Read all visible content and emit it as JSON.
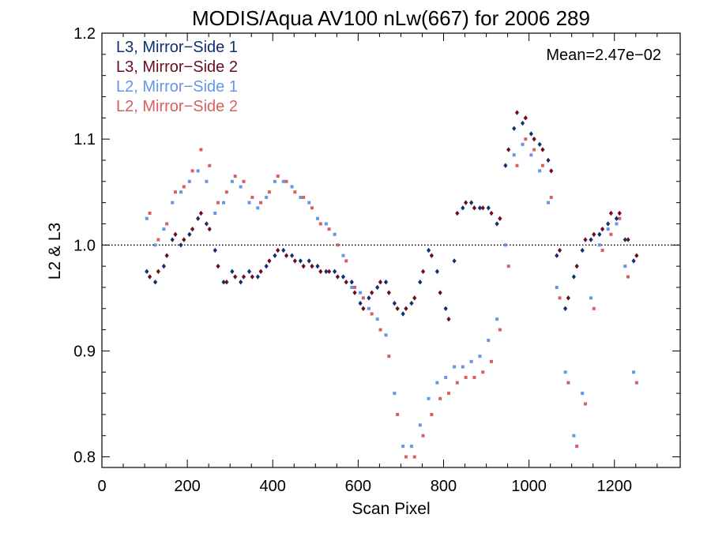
{
  "chart_data": {
    "type": "scatter",
    "title": "MODIS/Aqua AV100 nLw(667) for 2006 289",
    "xlabel": "Scan Pixel",
    "ylabel": "L2 & L3",
    "xlim": [
      0,
      1354
    ],
    "ylim": [
      0.79,
      1.2
    ],
    "xticks": [
      0,
      200,
      400,
      600,
      800,
      1000,
      1200
    ],
    "yticks": [
      0.8,
      0.9,
      1.0,
      1.1,
      1.2
    ],
    "xtick_labels": [
      "0",
      "200",
      "400",
      "600",
      "800",
      "1000",
      "1200"
    ],
    "ytick_labels": [
      "0.8",
      "0.9",
      "1.0",
      "1.1",
      "1.2"
    ],
    "reference_line": 1.0,
    "annotation": "Mean=2.47e−02",
    "legend_position": "top-left",
    "series": [
      {
        "name": "L3, Mirror−Side 1",
        "color": "#0f2f6e",
        "marker": "diamond",
        "x": [
          105,
          125,
          145,
          165,
          185,
          205,
          225,
          245,
          265,
          285,
          305,
          325,
          345,
          365,
          385,
          405,
          425,
          445,
          465,
          485,
          505,
          525,
          545,
          565,
          585,
          605,
          625,
          645,
          665,
          685,
          705,
          725,
          745,
          765,
          785,
          805,
          825,
          845,
          865,
          885,
          905,
          925,
          945,
          965,
          985,
          1005,
          1025,
          1045,
          1065,
          1085,
          1105,
          1125,
          1145,
          1165,
          1185,
          1205,
          1225,
          1245
        ],
        "y": [
          0.975,
          0.965,
          0.98,
          1.005,
          1.0,
          1.01,
          1.025,
          1.02,
          0.995,
          0.965,
          0.975,
          0.965,
          0.975,
          0.97,
          0.98,
          0.99,
          0.995,
          0.99,
          0.985,
          0.985,
          0.98,
          0.975,
          0.975,
          0.97,
          0.965,
          0.945,
          0.95,
          0.96,
          0.965,
          0.945,
          0.935,
          0.945,
          0.965,
          0.995,
          0.975,
          0.94,
          0.985,
          1.035,
          1.04,
          1.035,
          1.035,
          1.02,
          1.075,
          1.11,
          1.115,
          1.105,
          1.095,
          1.08,
          0.99,
          0.94,
          0.97,
          0.995,
          1.005,
          1.01,
          1.02,
          1.025,
          1.005,
          0.985
        ]
      },
      {
        "name": "L3, Mirror−Side 2",
        "color": "#6b0d1f",
        "marker": "diamond",
        "x": [
          112,
          132,
          152,
          172,
          192,
          212,
          232,
          252,
          272,
          292,
          312,
          332,
          352,
          372,
          392,
          412,
          432,
          452,
          472,
          492,
          512,
          532,
          552,
          572,
          592,
          612,
          632,
          652,
          672,
          692,
          712,
          732,
          752,
          772,
          792,
          812,
          832,
          852,
          872,
          892,
          912,
          932,
          952,
          972,
          992,
          1012,
          1032,
          1052,
          1072,
          1092,
          1112,
          1132,
          1152,
          1172,
          1192,
          1212,
          1232,
          1252
        ],
        "y": [
          0.97,
          0.975,
          0.99,
          1.01,
          1.005,
          1.015,
          1.03,
          1.015,
          0.98,
          0.965,
          0.97,
          0.97,
          0.97,
          0.975,
          0.985,
          0.995,
          0.99,
          0.985,
          0.98,
          0.98,
          0.975,
          0.975,
          0.97,
          0.965,
          0.955,
          0.94,
          0.955,
          0.965,
          0.955,
          0.94,
          0.94,
          0.95,
          0.975,
          0.99,
          0.955,
          0.93,
          1.03,
          1.04,
          1.035,
          1.035,
          1.03,
          1.025,
          1.09,
          1.125,
          1.12,
          1.1,
          1.09,
          1.07,
          0.995,
          0.95,
          0.98,
          1.005,
          1.01,
          1.015,
          1.03,
          1.03,
          1.005,
          0.99
        ]
      },
      {
        "name": "L2, Mirror−Side 1",
        "color": "#6495e8",
        "marker": "square",
        "x": [
          105,
          125,
          145,
          165,
          185,
          205,
          225,
          245,
          265,
          285,
          305,
          325,
          345,
          365,
          385,
          405,
          425,
          445,
          465,
          485,
          505,
          525,
          545,
          565,
          585,
          605,
          625,
          645,
          665,
          685,
          705,
          725,
          745,
          765,
          785,
          805,
          825,
          845,
          865,
          885,
          905,
          925,
          945,
          965,
          985,
          1005,
          1025,
          1045,
          1065,
          1085,
          1105,
          1125,
          1145,
          1165,
          1185,
          1205,
          1225,
          1245
        ],
        "y": [
          1.025,
          1.0,
          1.015,
          1.04,
          1.05,
          1.06,
          1.07,
          1.06,
          1.03,
          1.04,
          1.06,
          1.055,
          1.04,
          1.035,
          1.045,
          1.06,
          1.06,
          1.055,
          1.045,
          1.04,
          1.025,
          1.02,
          1.01,
          0.99,
          0.96,
          0.955,
          0.94,
          0.93,
          0.915,
          0.86,
          0.81,
          0.81,
          0.83,
          0.855,
          0.87,
          0.875,
          0.885,
          0.885,
          0.89,
          0.895,
          0.91,
          0.93,
          1.0,
          1.085,
          1.095,
          1.085,
          1.07,
          1.04,
          0.96,
          0.88,
          0.82,
          0.86,
          0.95,
          1.0,
          1.015,
          1.02,
          0.98,
          0.88
        ]
      },
      {
        "name": "L2, Mirror−Side 2",
        "color": "#d95f5f",
        "marker": "square",
        "x": [
          112,
          132,
          152,
          172,
          192,
          212,
          232,
          252,
          272,
          292,
          312,
          332,
          352,
          372,
          392,
          412,
          432,
          452,
          472,
          492,
          512,
          532,
          552,
          572,
          592,
          612,
          632,
          652,
          672,
          692,
          712,
          732,
          752,
          772,
          792,
          812,
          832,
          852,
          872,
          892,
          912,
          932,
          952,
          972,
          992,
          1012,
          1032,
          1052,
          1072,
          1092,
          1112,
          1132,
          1152,
          1172,
          1192,
          1212,
          1232,
          1252
        ],
        "y": [
          1.03,
          1.005,
          1.02,
          1.05,
          1.055,
          1.07,
          1.09,
          1.075,
          1.04,
          1.05,
          1.065,
          1.06,
          1.045,
          1.04,
          1.05,
          1.065,
          1.06,
          1.05,
          1.045,
          1.035,
          1.02,
          1.015,
          1.0,
          0.985,
          0.96,
          0.95,
          0.935,
          0.92,
          0.895,
          0.84,
          0.8,
          0.8,
          0.82,
          0.84,
          0.855,
          0.86,
          0.87,
          0.875,
          0.875,
          0.88,
          0.89,
          0.92,
          0.98,
          1.075,
          1.1,
          1.09,
          1.075,
          1.045,
          0.95,
          0.87,
          0.81,
          0.85,
          0.94,
          0.995,
          1.01,
          1.025,
          0.97,
          0.87
        ]
      }
    ]
  }
}
